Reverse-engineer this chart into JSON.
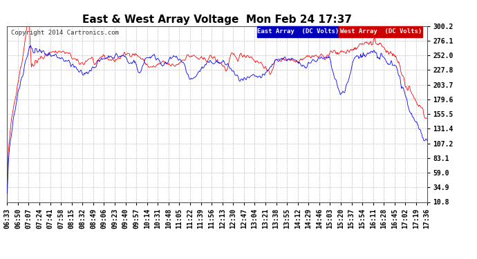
{
  "title": "East & West Array Voltage  Mon Feb 24 17:37",
  "copyright": "Copyright 2014 Cartronics.com",
  "legend_east": "East Array  (DC Volts)",
  "legend_west": "West Array  (DC Volts)",
  "east_color": "#0000ff",
  "west_color": "#ff0000",
  "legend_east_bg": "#0000bb",
  "legend_west_bg": "#cc0000",
  "yticks": [
    10.8,
    34.9,
    59.0,
    83.1,
    107.2,
    131.4,
    155.5,
    179.6,
    203.7,
    227.8,
    252.0,
    276.1,
    300.2
  ],
  "ymin": 10.8,
  "ymax": 300.2,
  "bg_color": "#ffffff",
  "plot_bg_color": "#ffffff",
  "grid_color": "#bbbbbb",
  "title_fontsize": 11,
  "tick_fontsize": 7,
  "num_points": 660,
  "xtick_labels": [
    "06:33",
    "06:50",
    "07:07",
    "07:24",
    "07:41",
    "07:58",
    "08:15",
    "08:32",
    "08:49",
    "09:06",
    "09:23",
    "09:40",
    "09:57",
    "10:14",
    "10:31",
    "10:48",
    "11:05",
    "11:22",
    "11:39",
    "11:56",
    "12:13",
    "12:30",
    "12:47",
    "13:04",
    "13:21",
    "13:38",
    "13:55",
    "14:12",
    "14:29",
    "14:46",
    "15:03",
    "15:20",
    "15:37",
    "15:54",
    "16:11",
    "16:28",
    "16:45",
    "17:02",
    "17:19",
    "17:36"
  ]
}
